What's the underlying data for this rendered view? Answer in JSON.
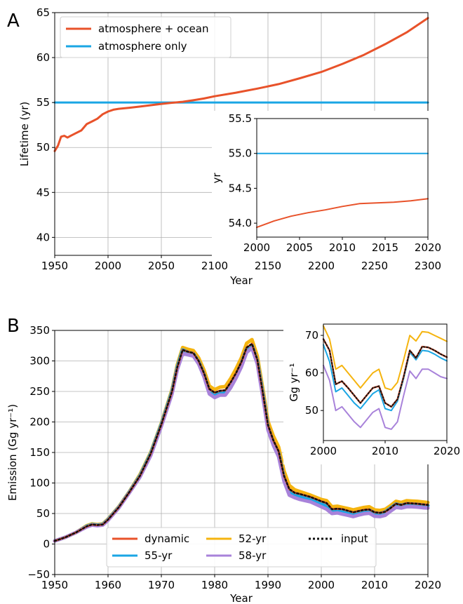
{
  "panel_labels": {
    "a": "A",
    "b": "B"
  },
  "colors": {
    "atm_ocean": "#E8522A",
    "atm_only": "#1AA6E4",
    "dynamic": "#E8522A",
    "yr55": "#1AA6E4",
    "yr52": "#F5B40F",
    "yr58": "#A882DA",
    "input": "#111111"
  },
  "chart_data": [
    {
      "type": "line",
      "panel": "A",
      "xlabel": "Year",
      "ylabel": "Lifetime (yr)",
      "xlim": [
        1950,
        2300
      ],
      "ylim": [
        38,
        65
      ],
      "xticks": [
        1950,
        2000,
        2050,
        2100,
        2150,
        2200,
        2250,
        2300
      ],
      "yticks": [
        40,
        45,
        50,
        55,
        60,
        65
      ],
      "grid": true,
      "legend_position": "top-left",
      "series": [
        {
          "name": "atmosphere + ocean",
          "x": [
            1950,
            1953,
            1956,
            1959,
            1962,
            1965,
            1970,
            1975,
            1980,
            1985,
            1990,
            1995,
            2000,
            2005,
            2010,
            2020,
            2030,
            2040,
            2050,
            2060,
            2070,
            2080,
            2090,
            2100,
            2120,
            2140,
            2160,
            2180,
            2200,
            2220,
            2240,
            2260,
            2280,
            2300
          ],
          "y": [
            49.6,
            50.2,
            51.2,
            51.3,
            51.1,
            51.3,
            51.6,
            51.9,
            52.6,
            52.9,
            53.2,
            53.7,
            54.0,
            54.2,
            54.3,
            54.42,
            54.55,
            54.7,
            54.85,
            54.97,
            55.08,
            55.25,
            55.45,
            55.7,
            56.1,
            56.55,
            57.05,
            57.7,
            58.4,
            59.3,
            60.3,
            61.5,
            62.8,
            64.4
          ]
        },
        {
          "name": "atmosphere only",
          "x": [
            1950,
            2300
          ],
          "y": [
            55,
            55
          ]
        }
      ]
    },
    {
      "type": "line",
      "panel": "A-inset",
      "xlabel": "",
      "ylabel": "yr",
      "xlim": [
        2000,
        2020
      ],
      "ylim": [
        53.8,
        55.5
      ],
      "xticks": [
        2000,
        2005,
        2010,
        2015,
        2020
      ],
      "yticks": [
        54.0,
        54.5,
        55.0,
        55.5
      ],
      "ytick_labels": [
        "54.0",
        "54.5",
        "55.0",
        "55.5"
      ],
      "grid": false,
      "series": [
        {
          "name": "atmosphere + ocean",
          "x": [
            2000,
            2002,
            2004,
            2006,
            2008,
            2010,
            2012,
            2014,
            2016,
            2018,
            2020
          ],
          "y": [
            53.94,
            54.03,
            54.1,
            54.15,
            54.19,
            54.24,
            54.28,
            54.29,
            54.3,
            54.32,
            54.35
          ]
        },
        {
          "name": "atmosphere only",
          "x": [
            2000,
            2020
          ],
          "y": [
            55,
            55
          ]
        }
      ]
    },
    {
      "type": "line",
      "panel": "B",
      "xlabel": "Year",
      "ylabel": "Emission (Gg yr⁻¹)",
      "xlim": [
        1950,
        2020
      ],
      "ylim": [
        -50,
        350
      ],
      "xticks": [
        1950,
        1960,
        1970,
        1980,
        1990,
        2000,
        2010,
        2020
      ],
      "yticks": [
        -50,
        0,
        50,
        100,
        150,
        200,
        250,
        300,
        350
      ],
      "ytick_labels": [
        "−50",
        "0",
        "50",
        "100",
        "150",
        "200",
        "250",
        "300",
        "350"
      ],
      "grid": true,
      "legend_position": "bottom-center",
      "x": [
        1950,
        1952,
        1954,
        1956,
        1957,
        1958,
        1959,
        1960,
        1962,
        1964,
        1966,
        1968,
        1970,
        1972,
        1973,
        1974,
        1975,
        1976,
        1977,
        1978,
        1979,
        1980,
        1981,
        1982,
        1983,
        1984,
        1985,
        1986,
        1987,
        1988,
        1989,
        1990,
        1991,
        1992,
        1993,
        1994,
        1995,
        1996,
        1998,
        2000,
        2001,
        2002,
        2003,
        2004,
        2005,
        2006,
        2007,
        2008,
        2009,
        2010,
        2011,
        2012,
        2013,
        2014,
        2015,
        2016,
        2017,
        2018,
        2019,
        2020
      ],
      "series": [
        {
          "name": "dynamic",
          "values": [
            5,
            11,
            19,
            29,
            32,
            31,
            32,
            40,
            60,
            85,
            112,
            148,
            196,
            250,
            290,
            318,
            315,
            313,
            300,
            280,
            254,
            248,
            251,
            252,
            265,
            280,
            298,
            322,
            328,
            302,
            250,
            195,
            170,
            152,
            112,
            90,
            84,
            82,
            77,
            70,
            67,
            57,
            57.8,
            57,
            54.5,
            52,
            54,
            56,
            56.5,
            52,
            51,
            53,
            59,
            66,
            64,
            67,
            66.5,
            66,
            65,
            64
          ]
        },
        {
          "name": "55-yr",
          "values": [
            5,
            11,
            19,
            29,
            32,
            31,
            32,
            40,
            60,
            85,
            112,
            148,
            196,
            250,
            290,
            318,
            314,
            312,
            299,
            278,
            251,
            245,
            248,
            249,
            262,
            277,
            296,
            320,
            326,
            300,
            248,
            192,
            167,
            149,
            109,
            86,
            81,
            78,
            74,
            66,
            63,
            55,
            56,
            54,
            52.5,
            50.5,
            52.5,
            54.5,
            55.5,
            51,
            50,
            52.5,
            59,
            65.5,
            63.5,
            66,
            65.5,
            65,
            64,
            63
          ]
        },
        {
          "name": "52-yr",
          "values": [
            5,
            11,
            19,
            30,
            33,
            32,
            33,
            41,
            61,
            86,
            114,
            150,
            198,
            253,
            294,
            322,
            319,
            317,
            305,
            285,
            259,
            253,
            257,
            258,
            271,
            287,
            305,
            329,
            335,
            308,
            256,
            201,
            177,
            159,
            120,
            96,
            89,
            86,
            80,
            73,
            71,
            61,
            62,
            60,
            58,
            56,
            58,
            60,
            61,
            56,
            55,
            57,
            63,
            70,
            68,
            71,
            70.5,
            70,
            69,
            68
          ]
        },
        {
          "name": "58-yr",
          "values": [
            5,
            11,
            19,
            28,
            31,
            30,
            31,
            39,
            59,
            84,
            110,
            145,
            193,
            246,
            286,
            312,
            310,
            308,
            295,
            274,
            246,
            240,
            244,
            244,
            256,
            272,
            290,
            314,
            321,
            295,
            243,
            187,
            162,
            143,
            103,
            80,
            76,
            73,
            69,
            61,
            57,
            50,
            51,
            49,
            47,
            45,
            47.5,
            49.5,
            50.5,
            45.5,
            45,
            47,
            54,
            60,
            59,
            61,
            61,
            60.5,
            59.5,
            59
          ]
        },
        {
          "name": "input",
          "values": [
            5,
            11,
            19,
            29,
            32,
            31,
            32,
            40,
            60,
            85,
            112,
            148,
            196,
            250,
            290,
            318,
            315,
            313,
            300,
            280,
            254,
            248,
            251,
            252,
            265,
            280,
            298,
            322,
            328,
            302,
            250,
            195,
            170,
            152,
            112,
            90,
            84,
            82,
            77,
            70,
            67,
            57,
            57.8,
            57,
            54.5,
            52,
            54,
            56,
            56.5,
            52,
            51,
            53,
            59,
            66,
            64,
            67,
            66.5,
            66,
            65,
            64
          ]
        }
      ]
    },
    {
      "type": "line",
      "panel": "B-inset",
      "xlabel": "",
      "ylabel": "Gg yr⁻¹",
      "xlim": [
        2000,
        2020
      ],
      "ylim": [
        42,
        73
      ],
      "xticks": [
        2000,
        2010,
        2020
      ],
      "yticks": [
        50,
        60,
        70
      ],
      "grid": false,
      "x": [
        2000,
        2001,
        2002,
        2003,
        2004,
        2005,
        2006,
        2007,
        2008,
        2009,
        2010,
        2011,
        2012,
        2013,
        2014,
        2015,
        2016,
        2017,
        2018,
        2019,
        2020
      ],
      "series": [
        {
          "name": "dynamic",
          "values": [
            69,
            66,
            57,
            57.8,
            56,
            54,
            52,
            54,
            56,
            56.5,
            52,
            51,
            53,
            59,
            66,
            64,
            67,
            66.8,
            66,
            65,
            64.2
          ]
        },
        {
          "name": "55-yr",
          "values": [
            67.5,
            63,
            55,
            56,
            54,
            52,
            50.5,
            52.5,
            54.5,
            55.5,
            50.5,
            50,
            52.5,
            58.5,
            65.5,
            63.5,
            66,
            65.8,
            65,
            64,
            63.2
          ]
        },
        {
          "name": "52-yr",
          "values": [
            72.5,
            69,
            61,
            62,
            60,
            58,
            56,
            58,
            60,
            61,
            56,
            55.5,
            57.5,
            63.5,
            70,
            68.5,
            71,
            70.8,
            70,
            69.2,
            68.4
          ]
        },
        {
          "name": "58-yr",
          "values": [
            62,
            58,
            50,
            51,
            49,
            47,
            45.5,
            47.5,
            49.5,
            50.5,
            45.5,
            45,
            47,
            54,
            60.5,
            58.5,
            61,
            61,
            60,
            59,
            58.5
          ]
        },
        {
          "name": "input",
          "values": [
            69,
            66,
            57,
            57.8,
            56,
            54,
            52,
            54,
            56,
            56.5,
            52,
            51,
            53,
            59,
            66,
            64,
            67,
            66.8,
            66,
            65,
            64.2
          ]
        }
      ]
    }
  ]
}
